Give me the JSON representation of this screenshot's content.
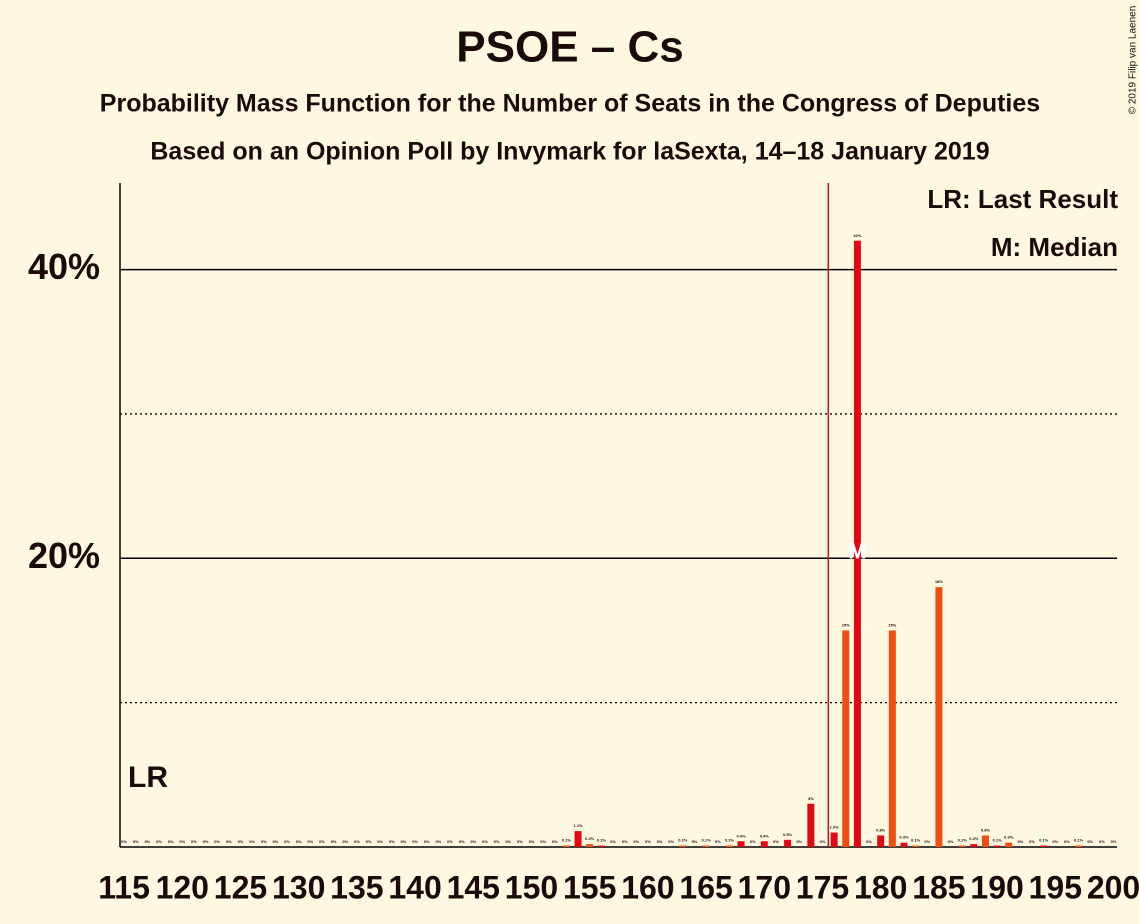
{
  "chart_data": {
    "type": "bar",
    "title": "PSOE – Cs",
    "subtitle": "Probability Mass Function for the Number of Seats in the Congress of Deputies",
    "subtitle2": "Based on an Opinion Poll by Invymark for laSexta, 14–18 January 2019",
    "copyright": "© 2019 Filip van Laenen",
    "legend": [
      "LR: Last Result",
      "M: Median"
    ],
    "last_result": 176,
    "last_result_label": "LR",
    "median": 178,
    "median_label": "M",
    "colors": [
      "#f04e0e",
      "#e30613"
    ],
    "x": [
      115,
      116,
      117,
      118,
      119,
      120,
      121,
      122,
      123,
      124,
      125,
      126,
      127,
      128,
      129,
      130,
      131,
      132,
      133,
      134,
      135,
      136,
      137,
      138,
      139,
      140,
      141,
      142,
      143,
      144,
      145,
      146,
      147,
      148,
      149,
      150,
      151,
      152,
      153,
      154,
      155,
      156,
      157,
      158,
      159,
      160,
      161,
      162,
      163,
      164,
      165,
      166,
      167,
      168,
      169,
      170,
      171,
      172,
      173,
      174,
      175,
      176,
      177,
      178,
      179,
      180,
      181,
      182,
      183,
      184,
      185,
      186,
      187,
      188,
      189,
      190,
      191,
      192,
      193,
      194,
      195,
      196,
      197,
      198,
      199,
      200
    ],
    "values": [
      0,
      0,
      0,
      0,
      0,
      0,
      0,
      0,
      0,
      0,
      0,
      0,
      0,
      0,
      0,
      0,
      0,
      0,
      0,
      0,
      0,
      0,
      0,
      0,
      0,
      0,
      0,
      0,
      0,
      0,
      0,
      0,
      0,
      0,
      0,
      0,
      0,
      0,
      0.1,
      1.1,
      0.2,
      0.1,
      0,
      0,
      0,
      0,
      0,
      0,
      0.1,
      0,
      0.1,
      0,
      0.1,
      0.4,
      0,
      0.4,
      0,
      0.5,
      0,
      3,
      0,
      1.0,
      15,
      42,
      0,
      0.8,
      15,
      0.3,
      0.1,
      0,
      18,
      0,
      0.1,
      0.2,
      0.8,
      0.1,
      0.3,
      0,
      0,
      0.1,
      0,
      0,
      0.1,
      0,
      0,
      0
    ],
    "value_labels": [
      "0%",
      "0%",
      "0%",
      "0%",
      "0%",
      "0%",
      "0%",
      "0%",
      "0%",
      "0%",
      "0%",
      "0%",
      "0%",
      "0%",
      "0%",
      "0%",
      "0%",
      "0%",
      "0%",
      "0%",
      "0%",
      "0%",
      "0%",
      "0%",
      "0%",
      "0%",
      "0%",
      "0%",
      "0%",
      "0%",
      "0%",
      "0%",
      "0%",
      "0%",
      "0%",
      "0%",
      "0%",
      "0%",
      "0.1%",
      "1.1%",
      "0.2%",
      "0.1%",
      "0%",
      "0%",
      "0%",
      "0%",
      "0%",
      "0%",
      "0.1%",
      "0%",
      "0.1%",
      "0%",
      "0.1%",
      "0.4%",
      "0%",
      "0.4%",
      "0%",
      "0.5%",
      "0%",
      "3%",
      "0%",
      "1.0%",
      "15%",
      "42%",
      "0%",
      "0.8%",
      "15%",
      "0.3%",
      "0.1%",
      "0%",
      "18%",
      "0%",
      "0.1%",
      "0.2%",
      "0.8%",
      "0.1%",
      "0.3%",
      "0%",
      "0%",
      "0.1%",
      "0%",
      "0%",
      "0.1%",
      "0%",
      "0%",
      "0%"
    ],
    "xlim": [
      114.65,
      200.3
    ],
    "xticks": [
      115,
      120,
      125,
      130,
      135,
      140,
      145,
      150,
      155,
      160,
      165,
      170,
      175,
      180,
      185,
      190,
      195,
      200
    ],
    "ylim": [
      0,
      46
    ],
    "yticks": [
      {
        "value": 20,
        "label": "20%"
      },
      {
        "value": 40,
        "label": "40%"
      }
    ],
    "minor_yticks": [
      10,
      30
    ],
    "grid": true
  }
}
